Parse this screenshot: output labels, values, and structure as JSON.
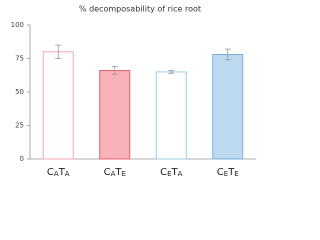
{
  "chart_data": {
    "type": "bar",
    "title": "% decomposability of rice root",
    "categories": [
      "CATA",
      "CATE",
      "CETA",
      "CETE"
    ],
    "values": [
      80,
      66,
      65,
      78
    ],
    "errors": [
      5,
      3,
      1,
      4
    ],
    "edge_colors": [
      "#f4a6ad",
      "#e0606c",
      "#9ccbe6",
      "#7eb0d9"
    ],
    "fill_colors": [
      "#ffffff",
      "#f9b2b8",
      "#ffffff",
      "#bcd9f0"
    ],
    "ylim": [
      0,
      100
    ],
    "yticks": [
      0,
      25,
      50,
      75,
      100
    ]
  }
}
